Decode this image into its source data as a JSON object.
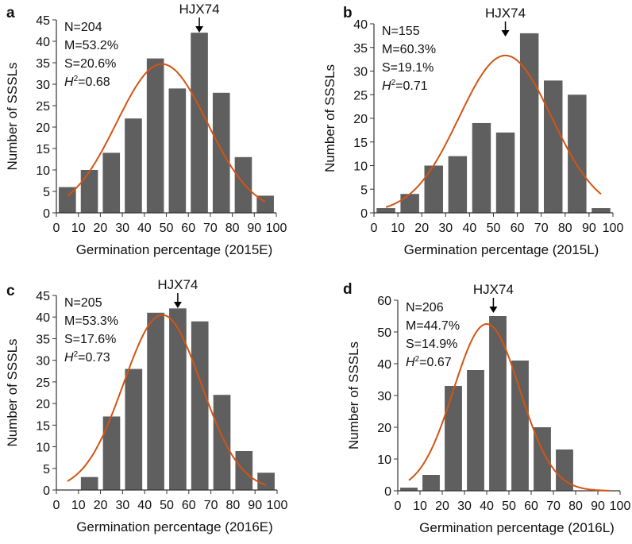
{
  "colors": {
    "bar": "#5f5f5f",
    "curve": "#d35414",
    "axis": "#333333"
  },
  "chart_data": [
    {
      "type": "bar",
      "panel": "a",
      "title": "",
      "xlabel": "Germination percentage (2015E)",
      "ylabel": "Number of SSSLs",
      "x": [
        5,
        15,
        25,
        35,
        45,
        55,
        65,
        75,
        85,
        95
      ],
      "values": [
        6,
        10,
        14,
        22,
        36,
        29,
        42,
        28,
        13,
        4
      ],
      "xlim": [
        0,
        100
      ],
      "ylim": [
        0,
        45
      ],
      "xticks": [
        0,
        10,
        20,
        30,
        40,
        50,
        60,
        70,
        80,
        90,
        100
      ],
      "yticks": [
        0,
        5,
        10,
        15,
        20,
        25,
        30,
        35,
        40,
        45
      ],
      "stats": [
        "N=204",
        "M=53.2%",
        "S=20.6%"
      ],
      "h2_label": "H",
      "h2_sup": "2",
      "h2_value": "=0.68",
      "annotation": {
        "text": "HJX74",
        "x": 65
      },
      "curve": {
        "type": "normal fit",
        "center": 48,
        "sd": 20.6,
        "peak": 34.7,
        "x_start": 5,
        "x_end": 95
      }
    },
    {
      "type": "bar",
      "panel": "b",
      "title": "",
      "xlabel": "Germination percentage (2015L)",
      "ylabel": "Number of SSSLs",
      "x": [
        5,
        15,
        25,
        35,
        45,
        55,
        65,
        75,
        85,
        95
      ],
      "values": [
        1,
        4,
        10,
        12,
        19,
        17,
        38,
        28,
        25,
        1
      ],
      "xlim": [
        0,
        100
      ],
      "ylim": [
        0,
        40
      ],
      "xticks": [
        0,
        10,
        20,
        30,
        40,
        50,
        60,
        70,
        80,
        90,
        100
      ],
      "yticks": [
        0,
        5,
        10,
        15,
        20,
        25,
        30,
        35,
        40
      ],
      "stats": [
        "N=155",
        "M=60.3%",
        "S=19.1%"
      ],
      "h2_label": "H",
      "h2_sup": "2",
      "h2_value": "=0.71",
      "annotation": {
        "text": "HJX74",
        "x": 55
      },
      "curve": {
        "type": "normal fit",
        "center": 55,
        "sd": 19.4,
        "peak": 33.3,
        "x_start": 5,
        "x_end": 95
      }
    },
    {
      "type": "bar",
      "panel": "c",
      "title": "",
      "xlabel": "Germination percentage (2016E)",
      "ylabel": "Number of SSSLs",
      "x": [
        5,
        15,
        25,
        35,
        45,
        55,
        65,
        75,
        85,
        95
      ],
      "values": [
        0,
        3,
        17,
        28,
        41,
        42,
        39,
        22,
        9,
        4
      ],
      "xlim": [
        0,
        100
      ],
      "ylim": [
        0,
        45
      ],
      "xticks": [
        0,
        10,
        20,
        30,
        40,
        50,
        60,
        70,
        80,
        90,
        100
      ],
      "yticks": [
        0,
        5,
        10,
        15,
        20,
        25,
        30,
        35,
        40,
        45
      ],
      "stats": [
        "N=205",
        "M=53.3%",
        "S=17.6%"
      ],
      "h2_label": "H",
      "h2_sup": "2",
      "h2_value": "=0.73",
      "annotation": {
        "text": "HJX74",
        "x": 55
      },
      "curve": {
        "type": "normal fit",
        "center": 48,
        "sd": 17.6,
        "peak": 40.5,
        "x_start": 5,
        "x_end": 95
      }
    },
    {
      "type": "bar",
      "panel": "d",
      "title": "",
      "xlabel": "Germination percentage (2016L)",
      "ylabel": "Number of SSSLs",
      "x": [
        5,
        15,
        25,
        35,
        45,
        55,
        65,
        75,
        85,
        95
      ],
      "values": [
        1,
        5,
        33,
        38,
        55,
        41,
        20,
        13,
        0,
        0
      ],
      "xlim": [
        0,
        100
      ],
      "ylim": [
        0,
        60
      ],
      "xticks": [
        0,
        10,
        20,
        30,
        40,
        50,
        60,
        70,
        80,
        90,
        100
      ],
      "yticks": [
        0,
        10,
        20,
        30,
        40,
        50,
        60
      ],
      "stats": [
        "N=206",
        "M=44.7%",
        "S=14.9%"
      ],
      "h2_label": "H",
      "h2_sup": "2",
      "h2_value": "=0.67",
      "annotation": {
        "text": "HJX74",
        "x": 43
      },
      "curve": {
        "type": "normal fit",
        "center": 40,
        "sd": 14.9,
        "peak": 52.5,
        "x_start": 5,
        "x_end": 95
      }
    }
  ]
}
